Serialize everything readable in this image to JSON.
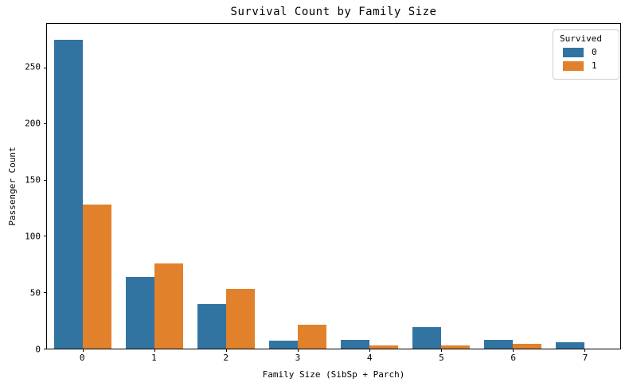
{
  "chart_data": {
    "type": "bar",
    "title": "Survival Count by Family Size",
    "xlabel": "Family Size (SibSp + Parch)",
    "ylabel": "Passenger Count",
    "categories": [
      "0",
      "1",
      "2",
      "3",
      "4",
      "5",
      "6",
      "7"
    ],
    "series": [
      {
        "name": "0",
        "color": "#3274a1",
        "values": [
          275,
          64,
          40,
          7,
          8,
          19,
          8,
          6
        ]
      },
      {
        "name": "1",
        "color": "#e1812c",
        "values": [
          128,
          76,
          53,
          21,
          3,
          3,
          4,
          0
        ]
      }
    ],
    "ylim": [
      0,
      289
    ],
    "yticks": [
      0,
      50,
      100,
      150,
      200,
      250
    ],
    "grid": false,
    "legend": {
      "title": "Survived",
      "position": "upper right",
      "entries": [
        {
          "label": "0",
          "color": "#3274a1"
        },
        {
          "label": "1",
          "color": "#e1812c"
        }
      ]
    }
  }
}
